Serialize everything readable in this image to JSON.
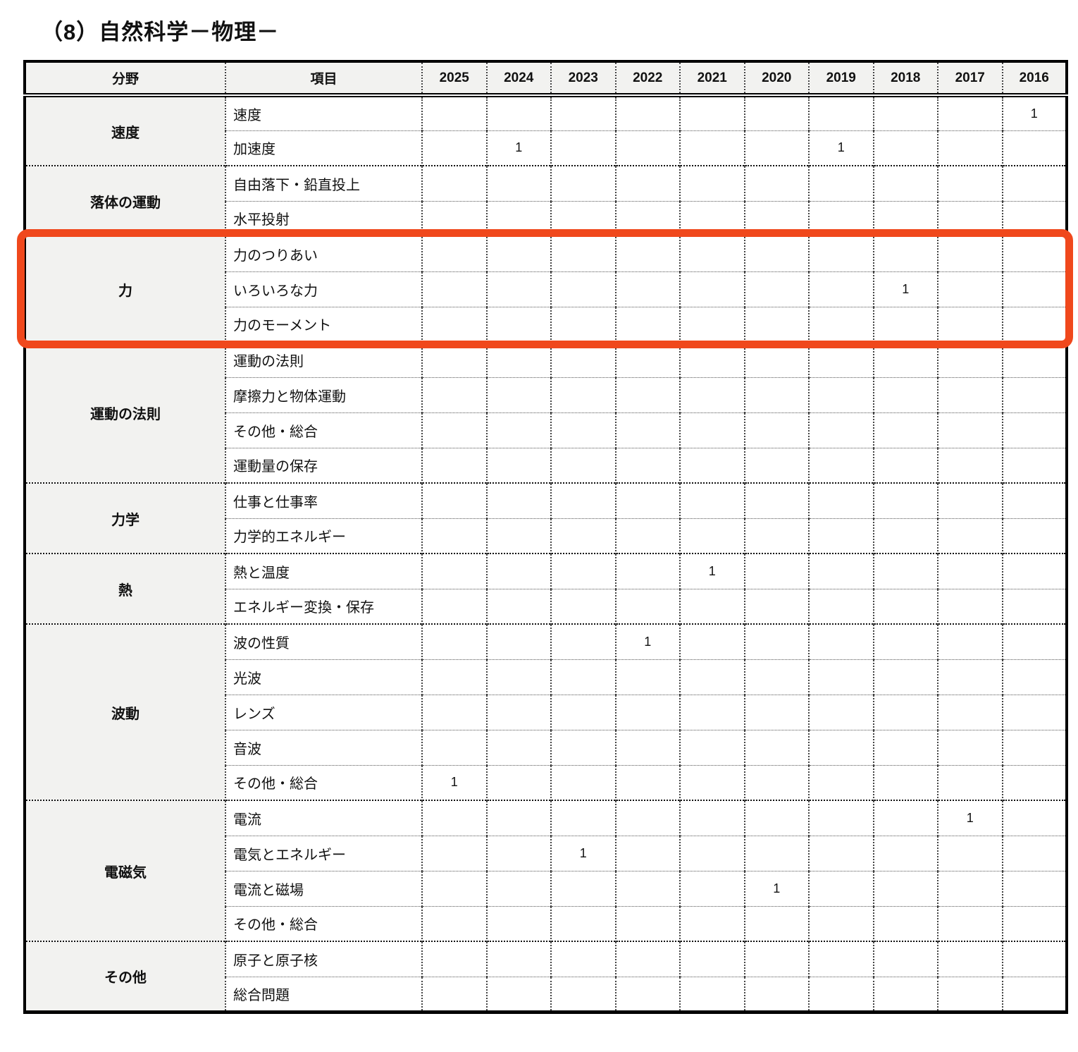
{
  "title": "（8）自然科学－物理－",
  "table": {
    "col_headers": {
      "field": "分野",
      "item": "項目"
    },
    "years": [
      "2025",
      "2024",
      "2023",
      "2022",
      "2021",
      "2020",
      "2019",
      "2018",
      "2017",
      "2016"
    ],
    "groups": [
      {
        "field": "速度",
        "highlighted": false,
        "rows": [
          {
            "item": "速度",
            "values": {
              "2016": "1"
            }
          },
          {
            "item": "加速度",
            "values": {
              "2024": "1",
              "2019": "1"
            }
          }
        ]
      },
      {
        "field": "落体の運動",
        "highlighted": false,
        "rows": [
          {
            "item": "自由落下・鉛直投上",
            "values": {}
          },
          {
            "item": "水平投射",
            "values": {}
          }
        ]
      },
      {
        "field": "力",
        "highlighted": true,
        "rows": [
          {
            "item": "力のつりあい",
            "values": {}
          },
          {
            "item": "いろいろな力",
            "values": {
              "2018": "1"
            }
          },
          {
            "item": "力のモーメント",
            "values": {}
          }
        ]
      },
      {
        "field": "運動の法則",
        "highlighted": false,
        "rows": [
          {
            "item": "運動の法則",
            "values": {}
          },
          {
            "item": "摩擦力と物体運動",
            "values": {}
          },
          {
            "item": "その他・総合",
            "values": {}
          },
          {
            "item": "運動量の保存",
            "values": {}
          }
        ]
      },
      {
        "field": "力学",
        "highlighted": false,
        "rows": [
          {
            "item": "仕事と仕事率",
            "values": {}
          },
          {
            "item": "力学的エネルギー",
            "values": {}
          }
        ]
      },
      {
        "field": "熱",
        "highlighted": false,
        "rows": [
          {
            "item": "熱と温度",
            "values": {
              "2021": "1"
            }
          },
          {
            "item": "エネルギー変換・保存",
            "values": {}
          }
        ]
      },
      {
        "field": "波動",
        "highlighted": false,
        "rows": [
          {
            "item": "波の性質",
            "values": {
              "2022": "1"
            }
          },
          {
            "item": "光波",
            "values": {}
          },
          {
            "item": "レンズ",
            "values": {}
          },
          {
            "item": "音波",
            "values": {}
          },
          {
            "item": "その他・総合",
            "values": {
              "2025": "1"
            }
          }
        ]
      },
      {
        "field": "電磁気",
        "highlighted": false,
        "rows": [
          {
            "item": "電流",
            "values": {
              "2017": "1"
            }
          },
          {
            "item": "電気とエネルギー",
            "values": {
              "2023": "1"
            }
          },
          {
            "item": "電流と磁場",
            "values": {
              "2020": "1"
            }
          },
          {
            "item": "その他・総合",
            "values": {}
          }
        ]
      },
      {
        "field": "その他",
        "highlighted": false,
        "rows": [
          {
            "item": "原子と原子核",
            "values": {}
          },
          {
            "item": "総合問題",
            "values": {}
          }
        ]
      }
    ],
    "highlight_color": "#F0481C"
  }
}
